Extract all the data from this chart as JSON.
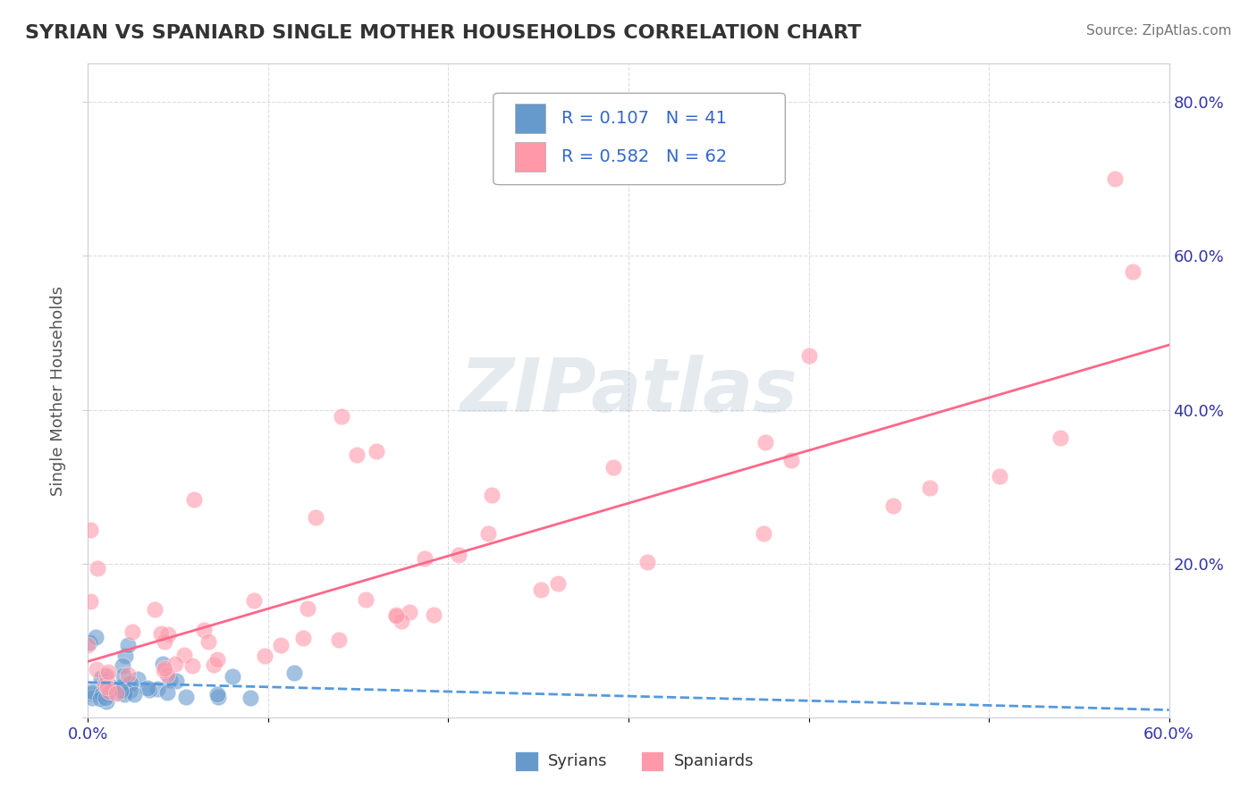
{
  "title": "SYRIAN VS SPANIARD SINGLE MOTHER HOUSEHOLDS CORRELATION CHART",
  "source_text": "Source: ZipAtlas.com",
  "xlabel": "",
  "ylabel": "Single Mother Households",
  "xlim": [
    0.0,
    0.6
  ],
  "ylim": [
    0.0,
    0.85
  ],
  "syrian_R": 0.107,
  "syrian_N": 41,
  "spaniard_R": 0.582,
  "spaniard_N": 62,
  "syrian_color": "#6699CC",
  "spaniard_color": "#FF99AA",
  "syrian_line_color": "#5599DD",
  "spaniard_line_color": "#FF6688",
  "background_color": "#FFFFFF",
  "grid_color": "#CCCCDD",
  "watermark_text": "ZIPatlas",
  "watermark_color": "#AABBCC"
}
